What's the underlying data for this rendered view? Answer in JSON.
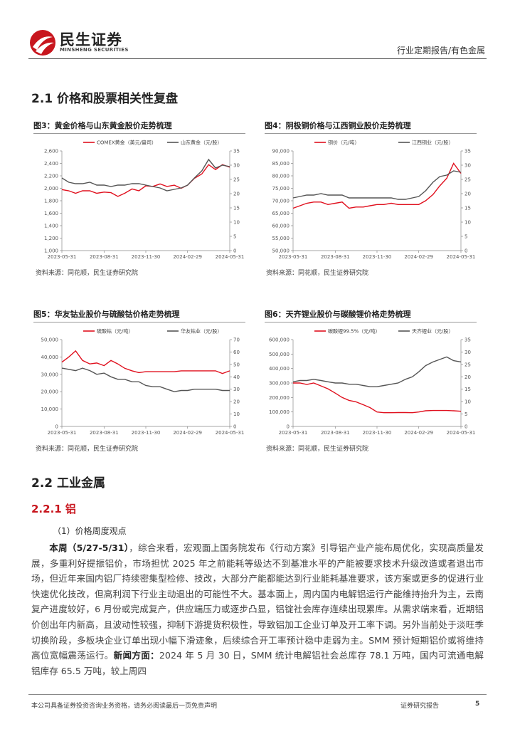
{
  "header": {
    "brand": "民生证券",
    "brand_en": "MINSHENG SECURITIES",
    "category": "行业定期报告/有色金属"
  },
  "section_1": {
    "title": "2.1 价格和股票相关性复盘"
  },
  "figures": [
    {
      "label": "图3：黄金价格与山东黄金股价走势梳理",
      "source": "资料来源：同花顺，民生证券研究院",
      "chart": {
        "type": "line",
        "x": [
          "2023-05-31",
          "2023-06-15",
          "2023-06-30",
          "2023-07-15",
          "2023-07-31",
          "2023-08-15",
          "2023-08-31",
          "2023-09-15",
          "2023-09-30",
          "2023-10-15",
          "2023-10-31",
          "2023-11-15",
          "2023-11-30",
          "2023-12-15",
          "2023-12-31",
          "2024-01-15",
          "2024-01-31",
          "2024-02-15",
          "2024-02-29",
          "2024-03-15",
          "2024-03-31",
          "2024-04-15",
          "2024-04-30",
          "2024-05-15",
          "2024-05-31"
        ],
        "xlim": [
          "2023-05-31",
          "2024-05-31"
        ],
        "xticks": [
          "2023-05-31",
          "2023-08-31",
          "2023-11-30",
          "2024-02-29",
          "2024-05-31"
        ],
        "ylim": [
          1000,
          2600
        ],
        "yticks": [
          {
            "value": 1000,
            "label": "1,000"
          },
          {
            "value": 1200,
            "label": "1,200"
          },
          {
            "value": 1400,
            "label": "1,400"
          },
          {
            "value": 1600,
            "label": "1,600"
          },
          {
            "value": 1800,
            "label": "1,800"
          },
          {
            "value": 2000,
            "label": "2,000"
          },
          {
            "value": 2200,
            "label": "2,200"
          },
          {
            "value": 2400,
            "label": "2,400"
          },
          {
            "value": 2600,
            "label": "2,600"
          }
        ],
        "y2lim": [
          0,
          35
        ],
        "y2ticks": [
          0,
          5,
          10,
          15,
          20,
          25,
          30,
          35
        ],
        "series": [
          {
            "name": "COMEX黄金（美元/盎司）",
            "color": "#e0101e",
            "values": [
              1980,
              1960,
              1920,
              1960,
              1960,
              1920,
              1940,
              1930,
              1870,
              1920,
              1990,
              1960,
              2040,
              2030,
              2070,
              2030,
              2050,
              2000,
              2050,
              2160,
              2230,
              2380,
              2300,
              2380,
              2340
            ]
          },
          {
            "name": "山东黄金（元/股）",
            "color": "#555555",
            "axis": "y2",
            "values": [
              25.5,
              24,
              23.5,
              23.5,
              24,
              23,
              23,
              22.5,
              23,
              23,
              23.5,
              23.5,
              23,
              22.5,
              22,
              21,
              21.5,
              22,
              23,
              25.5,
              28,
              32,
              29,
              30,
              29.5
            ]
          }
        ]
      }
    },
    {
      "label": "图4：阴极铜价格与江西铜业股价走势梳理",
      "source": "资料来源：同花顺，民生证券研究院",
      "chart": {
        "type": "line",
        "x": [
          "2023-05-31",
          "2023-06-15",
          "2023-06-30",
          "2023-07-15",
          "2023-07-31",
          "2023-08-15",
          "2023-08-31",
          "2023-09-15",
          "2023-09-30",
          "2023-10-15",
          "2023-10-31",
          "2023-11-15",
          "2023-11-30",
          "2023-12-15",
          "2023-12-31",
          "2024-01-15",
          "2024-01-31",
          "2024-02-15",
          "2024-02-29",
          "2024-03-15",
          "2024-03-31",
          "2024-04-15",
          "2024-04-30",
          "2024-05-15",
          "2024-05-31"
        ],
        "xlim": [
          "2023-05-31",
          "2024-05-31"
        ],
        "xticks": [
          "2023-05-31",
          "2023-08-31",
          "2023-11-30",
          "2024-02-29",
          "2024-05-31"
        ],
        "ylim": [
          50000,
          90000
        ],
        "yticks": [
          {
            "value": 50000,
            "label": "50,000"
          },
          {
            "value": 55000,
            "label": "55,000"
          },
          {
            "value": 60000,
            "label": "60,000"
          },
          {
            "value": 65000,
            "label": "65,000"
          },
          {
            "value": 70000,
            "label": "70,000"
          },
          {
            "value": 75000,
            "label": "75,000"
          },
          {
            "value": 80000,
            "label": "80,000"
          },
          {
            "value": 85000,
            "label": "85,000"
          },
          {
            "value": 90000,
            "label": "90,000"
          }
        ],
        "y2lim": [
          0,
          35
        ],
        "y2ticks": [
          0,
          5,
          10,
          15,
          20,
          25,
          30,
          35
        ],
        "series": [
          {
            "name": "铜价（元/吨）",
            "color": "#e0101e",
            "values": [
              67000,
              68000,
              69000,
              69500,
              69500,
              68500,
              69000,
              69500,
              67000,
              67500,
              67500,
              68000,
              68500,
              68500,
              69000,
              68500,
              68500,
              68500,
              68500,
              70000,
              72500,
              76000,
              79000,
              85000,
              81000
            ]
          },
          {
            "name": "江西铜业（元/股）",
            "color": "#555555",
            "axis": "y2",
            "values": [
              18.5,
              19,
              19.5,
              19.5,
              20,
              19.5,
              19.5,
              19.5,
              18.5,
              18.5,
              18.5,
              18.5,
              18.5,
              18.5,
              18.5,
              18,
              18,
              18.5,
              19,
              21,
              24,
              26,
              26.5,
              28,
              27.5
            ]
          }
        ]
      }
    },
    {
      "label": "图5：华友钴业股价与硫酸钴价格走势梳理",
      "source": "资料来源：同花顺，民生证券研究院",
      "chart": {
        "type": "line",
        "x": [
          "2023-05-31",
          "2023-06-15",
          "2023-06-30",
          "2023-07-15",
          "2023-07-31",
          "2023-08-15",
          "2023-08-31",
          "2023-09-15",
          "2023-09-30",
          "2023-10-15",
          "2023-10-31",
          "2023-11-15",
          "2023-11-30",
          "2023-12-15",
          "2023-12-31",
          "2024-01-15",
          "2024-01-31",
          "2024-02-15",
          "2024-02-29",
          "2024-03-15",
          "2024-03-31",
          "2024-04-15",
          "2024-04-30",
          "2024-05-15",
          "2024-05-31"
        ],
        "xlim": [
          "2023-05-31",
          "2024-05-31"
        ],
        "xticks": [
          "2023-05-31",
          "2023-08-31",
          "2023-11-30",
          "2024-02-29",
          "2024-05-31"
        ],
        "ylim": [
          0,
          50000
        ],
        "yticks": [
          0,
          {
            "value": 10000,
            "label": "10,000"
          },
          {
            "value": 20000,
            "label": "20,000"
          },
          {
            "value": 30000,
            "label": "30,000"
          },
          {
            "value": 40000,
            "label": "40,000"
          },
          {
            "value": 50000,
            "label": "50,000"
          }
        ],
        "y2lim": [
          0,
          70
        ],
        "y2ticks": [
          0,
          10,
          20,
          30,
          40,
          50,
          60,
          70
        ],
        "series": [
          {
            "name": "硫酸钴（元/吨）",
            "color": "#e0101e",
            "values": [
              37000,
              40000,
              43500,
              38000,
              36000,
              36500,
              35000,
              38000,
              36000,
              33500,
              32000,
              31000,
              31500,
              31500,
              31500,
              31500,
              31500,
              32000,
              32000,
              32000,
              32000,
              32000,
              32000,
              30500,
              32000
            ]
          },
          {
            "name": "华友钴业（元/股）",
            "color": "#555555",
            "axis": "y2",
            "values": [
              47,
              46,
              45,
              47,
              45,
              42,
              43,
              40,
              38,
              38,
              36,
              36,
              33,
              32,
              32,
              30,
              28,
              29,
              29,
              30,
              30,
              30,
              30,
              29,
              29
            ]
          }
        ]
      }
    },
    {
      "label": "图6：天齐锂业股价与碳酸锂价格走势梳理",
      "source": "资料来源：同花顺，民生证券研究院",
      "chart": {
        "type": "line",
        "x": [
          "2023-05-31",
          "2023-06-15",
          "2023-06-30",
          "2023-07-15",
          "2023-07-31",
          "2023-08-15",
          "2023-08-31",
          "2023-09-15",
          "2023-09-30",
          "2023-10-15",
          "2023-10-31",
          "2023-11-15",
          "2023-11-30",
          "2023-12-15",
          "2023-12-31",
          "2024-01-15",
          "2024-01-31",
          "2024-02-15",
          "2024-02-29",
          "2024-03-15",
          "2024-03-31",
          "2024-04-15",
          "2024-04-30",
          "2024-05-15",
          "2024-05-31"
        ],
        "xlim": [
          "2023-05-31",
          "2024-05-31"
        ],
        "xticks": [
          "2023-05-31",
          "2023-08-31",
          "2023-11-30",
          "2024-02-29",
          "2024-05-31"
        ],
        "ylim": [
          0,
          600000
        ],
        "yticks": [
          0,
          {
            "value": 100000,
            "label": "100,000"
          },
          {
            "value": 200000,
            "label": "200,000"
          },
          {
            "value": 300000,
            "label": "300,000"
          },
          {
            "value": 400000,
            "label": "400,000"
          },
          {
            "value": 500000,
            "label": "500,000"
          },
          {
            "value": 600000,
            "label": "600,000"
          }
        ],
        "y2lim": [
          0,
          35
        ],
        "y2ticks": [
          0,
          5,
          10,
          15,
          20,
          25,
          30,
          35
        ],
        "series": [
          {
            "name": "碳酸锂99.5%（元/吨）",
            "color": "#e0101e",
            "values": [
              300000,
              300000,
              290000,
              300000,
              280000,
              260000,
              230000,
              200000,
              180000,
              170000,
              150000,
              130000,
              100000,
              95000,
              95000,
              96000,
              96000,
              95000,
              100000,
              108000,
              110000,
              110000,
              110000,
              108000,
              105000
            ]
          },
          {
            "name": "天齐锂业（元/股）",
            "color": "#555555",
            "axis": "y2",
            "values": [
              18,
              18.5,
              18.5,
              19,
              18.5,
              18,
              17.5,
              17.5,
              17,
              17,
              16.5,
              16,
              16,
              16.5,
              17,
              17.5,
              19,
              20,
              22,
              24.5,
              26,
              27,
              28,
              26.5,
              26
            ]
          }
        ]
      }
    }
  ],
  "section_2": {
    "title": "2.2 工业金属",
    "subsection": "2.2.1 铝",
    "item": "（1）价格周度观点",
    "paragraph": [
      {
        "text": "本周（5/27-5/31）",
        "bold": true
      },
      {
        "text": "，综合来看，宏观面上国务院发布《行动方案》引导铝产业产能布局优化，实现高质量发展，多重利好提振铝价，市场担忧 2025 年之前能耗等级达不到基准水平的产能被要求技术升级改造或者退出市场，但近年来国内铝厂持续密集型检修、技改，大部分产能都能达到行业能耗基准要求，该方案或更多的促进行业快速优化技改，但高利润下行业主动退出的可能性不大。基本面上，周内国内电解铝运行产能维持抬升为主，云南复产进度较好，6 月份或完成复产，供应端压力或逐步凸显，铝锭社会库存连续出现累库。从需求端来看，近期铝价创出年内新高，且波动性较强，抑制下游提货积极性，导致铝加工企业订单及开工率下调。另外当前处于淡旺季切换阶段，多板块企业订单出现小幅下滑迹象，后续综合开工率预计稳中走弱为主。SMM 预计短期铝价或将维持高位宽幅震荡运行。",
        "bold": false
      },
      {
        "text": "新闻方面：",
        "bold": true
      },
      {
        "text": "2024 年 5 月 30 日，SMM 统计电解铝社会总库存 78.1 万吨，国内可流通电解铝库存 65.5 万吨，较上周四",
        "bold": false
      }
    ]
  },
  "footer": {
    "disclaimer": "本公司具备证券投资咨询业务资格，请务必阅读最后一页免责声明",
    "doc_type": "证券研究报告",
    "page": 5
  }
}
